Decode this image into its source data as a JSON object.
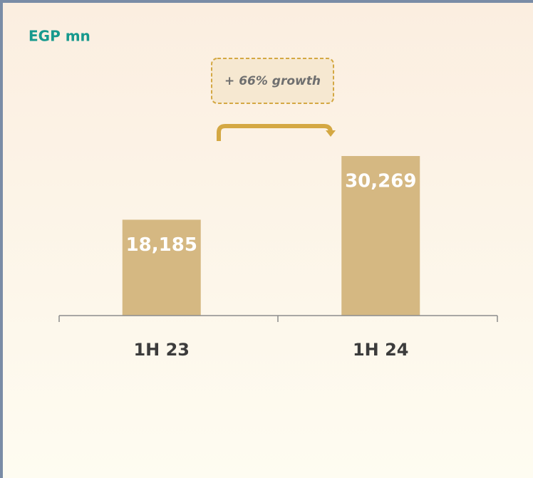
{
  "chart_data": {
    "type": "bar",
    "unit_label": "EGP mn",
    "annotation": "+ 66% growth",
    "categories": [
      "1H 23",
      "1H 24"
    ],
    "values": [
      18185,
      30269
    ],
    "value_labels": [
      "18,185",
      "30,269"
    ],
    "color": "#d5b882"
  }
}
